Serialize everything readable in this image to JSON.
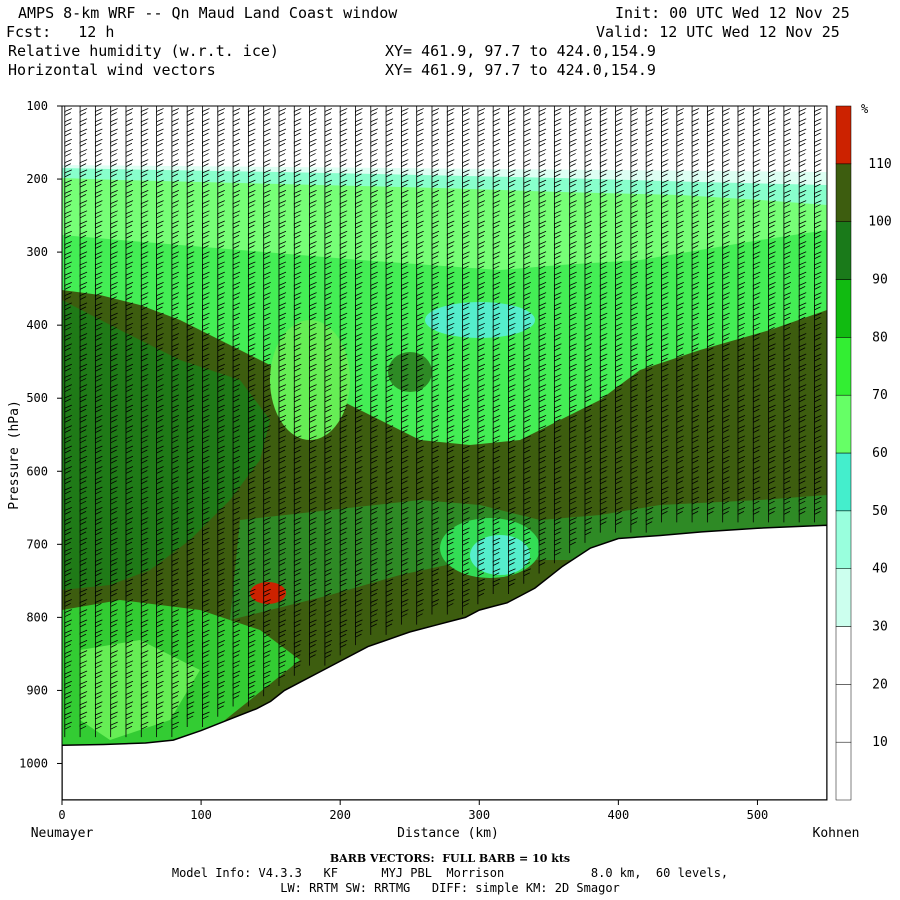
{
  "header": {
    "title": "AMPS 8-km WRF -- Qn Maud Land Coast window",
    "fcst": "Fcst:   12 h",
    "init": "Init: 00 UTC Wed 12 Nov 25",
    "valid": "Valid: 12 UTC Wed 12 Nov 25",
    "field1": "Relative humidity (w.r.t. ice)",
    "field2": "Horizontal wind vectors",
    "xy1": "XY= 461.9, 97.7 to 424.0,154.9",
    "xy2": "XY= 461.9, 97.7 to 424.0,154.9"
  },
  "chart_data": {
    "type": "heatmap",
    "title": "Relative humidity (w.r.t. ice)",
    "xlabel": "Distance (km)",
    "ylabel": "Pressure (hPa)",
    "xlim": [
      0,
      550
    ],
    "ylim": [
      1050,
      100
    ],
    "x_ticks": [
      0,
      100,
      200,
      300,
      400,
      500
    ],
    "y_ticks": [
      100,
      200,
      300,
      400,
      500,
      600,
      700,
      800,
      900,
      1000
    ],
    "left_label": "Neumayer",
    "right_label": "Kohnen",
    "colorbar": {
      "unit": "%",
      "levels": [
        10,
        20,
        30,
        40,
        50,
        60,
        70,
        80,
        90,
        100,
        110
      ],
      "colors": [
        "#ffffff",
        "#ffffff",
        "#ffffff",
        "#ccffee",
        "#99ffdd",
        "#44eecc",
        "#66ff66",
        "#33ee33",
        "#11bb11",
        "#1a7a1a",
        "#3d5d0f",
        "#cc2200"
      ]
    },
    "terrain": [
      [
        0,
        975
      ],
      [
        30,
        974
      ],
      [
        60,
        972
      ],
      [
        80,
        968
      ],
      [
        100,
        955
      ],
      [
        120,
        940
      ],
      [
        140,
        925
      ],
      [
        150,
        915
      ],
      [
        160,
        900
      ],
      [
        170,
        890
      ],
      [
        190,
        870
      ],
      [
        220,
        840
      ],
      [
        250,
        820
      ],
      [
        270,
        810
      ],
      [
        280,
        805
      ],
      [
        290,
        800
      ],
      [
        300,
        790
      ],
      [
        310,
        785
      ],
      [
        320,
        780
      ],
      [
        330,
        770
      ],
      [
        340,
        760
      ],
      [
        350,
        745
      ],
      [
        360,
        730
      ],
      [
        380,
        705
      ],
      [
        400,
        692
      ],
      [
        430,
        688
      ],
      [
        460,
        683
      ],
      [
        500,
        678
      ],
      [
        550,
        674
      ]
    ],
    "barb_legend": "BARB VECTORS:  FULL BARB = 10 kts"
  },
  "footer": {
    "line1": "Model Info: V4.3.3   KF      MYJ PBL  Morrison            8.0 km,  60 levels,",
    "line2": "LW: RRTM SW: RRTMG   DIFF: simple KM: 2D Smagor"
  }
}
